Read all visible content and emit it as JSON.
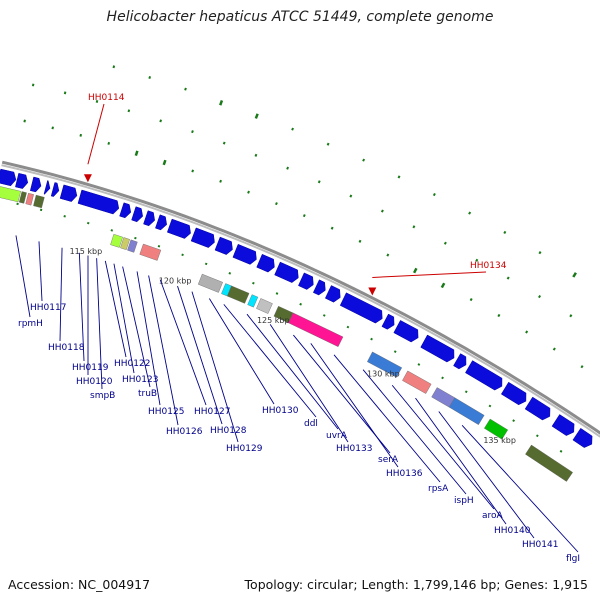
{
  "title": "Helicobacter hepaticus ATCC 51449, complete genome",
  "footer": {
    "accession_label": "Accession:",
    "accession": "NC_004917",
    "topology_label": "Topology:",
    "topology": "circular",
    "length_label": "Length:",
    "length": "1,799,146 bp",
    "genes_label": "Genes:",
    "genes": "1,915"
  },
  "colors": {
    "backbone": "#8c8c8c",
    "gene_forward": "#0b0bdc",
    "gene_label": "#00008b",
    "highlight_label": "#cc0000",
    "tick_green": "#1a7a1a",
    "scale_text": "#333333"
  },
  "scale_labels": [
    {
      "kbp": 115,
      "text": "115 kbp"
    },
    {
      "kbp": 120,
      "text": "120 kbp"
    },
    {
      "kbp": 125,
      "text": "125 kbp"
    },
    {
      "kbp": 130,
      "text": "130 kbp"
    },
    {
      "kbp": 135,
      "text": "135 kbp"
    }
  ],
  "highlights": [
    {
      "name": "HH0114",
      "color": "#cc0000"
    },
    {
      "name": "HH0134",
      "color": "#cc0000"
    }
  ],
  "gene_labels": [
    "rpmH",
    "HH0117",
    "HH0118",
    "HH0119",
    "HH0120",
    "smpB",
    "HH0122",
    "HH0123",
    "truB",
    "HH0125",
    "HH0126",
    "HH0127",
    "HH0128",
    "HH0129",
    "HH0130",
    "ddl",
    "uvrA",
    "HH0133",
    "serA",
    "HH0136",
    "rpsA",
    "ispH",
    "aroA",
    "HH0140",
    "HH0141",
    "flgI"
  ],
  "cog_colors": [
    "#a6ff3c",
    "#556b2f",
    "#f08080",
    "#b0b0b0",
    "#8080d0",
    "#c0c0c0",
    "#ff1493",
    "#00e5ff",
    "#3a7bd5",
    "#00c000",
    "#cccc66",
    "#e0e0e0"
  ]
}
